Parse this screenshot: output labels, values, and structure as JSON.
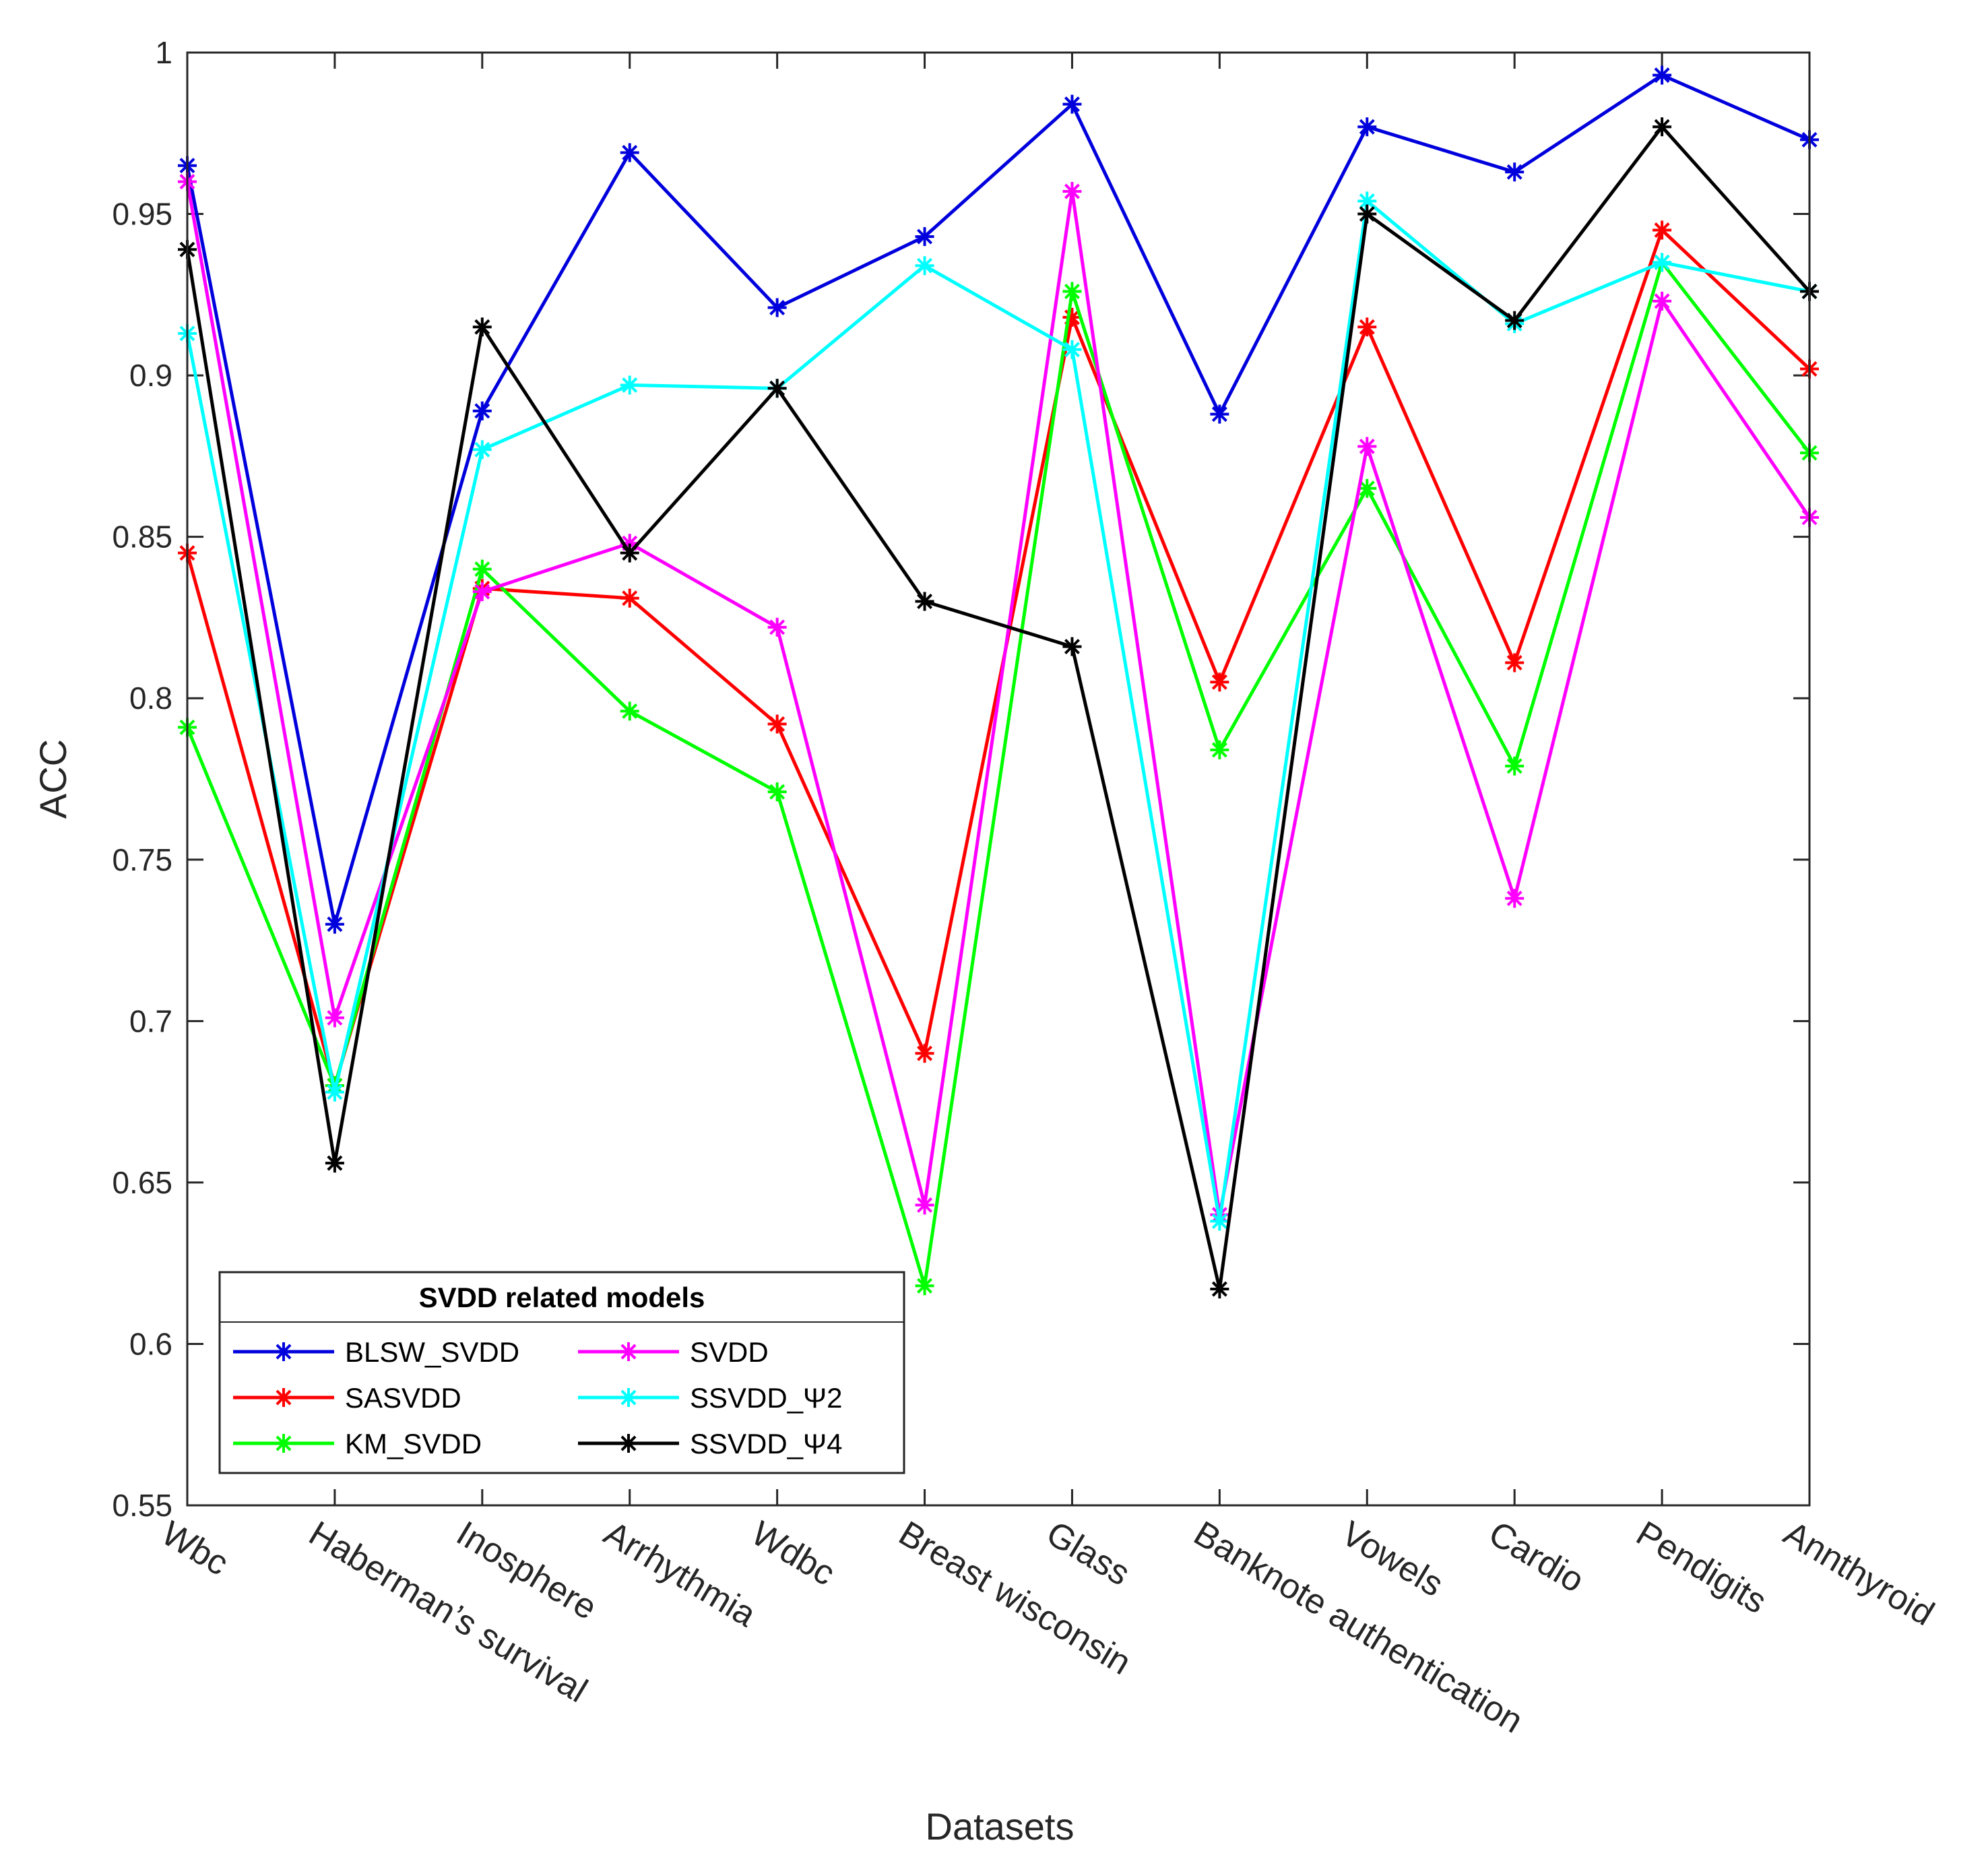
{
  "chart_data": {
    "type": "line",
    "title": "",
    "xlabel": "Datasets",
    "ylabel": "ACC",
    "ylim": [
      0.55,
      1.0
    ],
    "yticks": [
      0.55,
      0.6,
      0.65,
      0.7,
      0.75,
      0.8,
      0.85,
      0.9,
      0.95,
      1.0
    ],
    "ytick_labels": [
      "0.55",
      "0.6",
      "0.65",
      "0.7",
      "0.75",
      "0.8",
      "0.85",
      "0.9",
      "0.95",
      "1"
    ],
    "grid": false,
    "categories": [
      "Wbc",
      "Haberman’s survival",
      "Inosphere",
      "Arrhythmia",
      "Wdbc",
      "Breast wisconsin",
      "Glass",
      "Banknote authentication",
      "Vowels",
      "Cardio",
      "Pendigits",
      "Annthyroid"
    ],
    "legend": {
      "title": "SVDD related models",
      "position": "bottom-left",
      "columns": 2
    },
    "series": [
      {
        "name": "BLSW_SVDD",
        "color": "#0000dd",
        "marker": "asterisk",
        "values": [
          0.965,
          0.73,
          0.889,
          0.969,
          0.921,
          0.943,
          0.984,
          0.888,
          0.977,
          0.963,
          0.993,
          0.973
        ]
      },
      {
        "name": "SASVDD",
        "color": "#ff0000",
        "marker": "asterisk",
        "values": [
          0.845,
          0.68,
          0.834,
          0.831,
          0.792,
          0.69,
          0.918,
          0.805,
          0.915,
          0.811,
          0.945,
          0.902
        ]
      },
      {
        "name": "KM_SVDD",
        "color": "#00ff00",
        "marker": "asterisk",
        "values": [
          0.791,
          0.68,
          0.84,
          0.796,
          0.771,
          0.618,
          0.926,
          0.784,
          0.865,
          0.779,
          0.935,
          0.876
        ]
      },
      {
        "name": "SVDD",
        "color": "#ff00ff",
        "marker": "asterisk",
        "values": [
          0.96,
          0.701,
          0.833,
          0.848,
          0.822,
          0.643,
          0.957,
          0.64,
          0.878,
          0.738,
          0.923,
          0.856
        ]
      },
      {
        "name": "SSVDD_Ψ2",
        "color": "#00ffff",
        "marker": "asterisk",
        "values": [
          0.913,
          0.678,
          0.877,
          0.897,
          0.896,
          0.934,
          0.908,
          0.638,
          0.954,
          0.916,
          0.935,
          0.926
        ]
      },
      {
        "name": "SSVDD_Ψ4",
        "color": "#000000",
        "marker": "asterisk",
        "values": [
          0.939,
          0.656,
          0.915,
          0.845,
          0.896,
          0.83,
          0.816,
          0.617,
          0.95,
          0.917,
          0.977,
          0.926
        ]
      }
    ]
  }
}
